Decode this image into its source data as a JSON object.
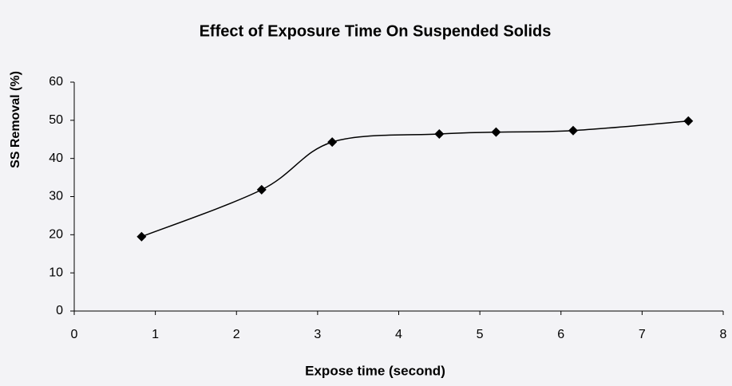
{
  "chart_data": {
    "type": "line",
    "title": "Effect of Exposure Time On Suspended Solids",
    "x_label": "Expose time (second)",
    "y_label": "SS Removal (%)",
    "x": [
      0.83,
      2.31,
      3.18,
      4.5,
      5.2,
      6.15,
      7.57
    ],
    "series": [
      {
        "name": "SS Removal",
        "color": "#000000",
        "values": [
          19.5,
          31.8,
          44.3,
          46.4,
          46.9,
          47.3,
          49.8
        ]
      }
    ],
    "xlim": [
      0,
      8
    ],
    "xticks": [
      0,
      1,
      2,
      3,
      4,
      5,
      6,
      7,
      8
    ],
    "ylim": [
      0,
      60
    ],
    "yticks": [
      0,
      10,
      20,
      30,
      40,
      50,
      60
    ],
    "grid": false,
    "smooth": true,
    "marker": "diamond"
  }
}
